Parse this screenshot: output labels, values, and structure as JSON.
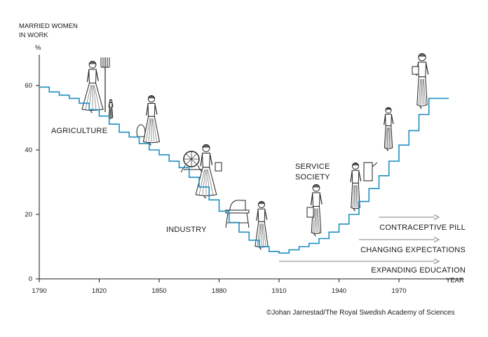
{
  "chart_data": {
    "type": "line",
    "ylabel": [
      "MARRIED WOMEN",
      "IN WORK"
    ],
    "yunit": "%",
    "xlabel": "YEAR",
    "xlim": [
      1790,
      1995
    ],
    "ylim": [
      0,
      65
    ],
    "xticks": [
      1790,
      1820,
      1850,
      1880,
      1910,
      1940,
      1970
    ],
    "yticks": [
      0,
      20,
      40,
      60
    ],
    "series_color": "#1f8fc1",
    "points": [
      {
        "x": 1790,
        "y": 59.5
      },
      {
        "x": 1795,
        "y": 58.0
      },
      {
        "x": 1800,
        "y": 57.0
      },
      {
        "x": 1805,
        "y": 56.0
      },
      {
        "x": 1810,
        "y": 54.5
      },
      {
        "x": 1815,
        "y": 52.5
      },
      {
        "x": 1820,
        "y": 50.5
      },
      {
        "x": 1825,
        "y": 48.0
      },
      {
        "x": 1830,
        "y": 45.5
      },
      {
        "x": 1835,
        "y": 44.0
      },
      {
        "x": 1840,
        "y": 42.0
      },
      {
        "x": 1845,
        "y": 40.0
      },
      {
        "x": 1850,
        "y": 38.5
      },
      {
        "x": 1855,
        "y": 36.5
      },
      {
        "x": 1860,
        "y": 34.5
      },
      {
        "x": 1865,
        "y": 31.5
      },
      {
        "x": 1870,
        "y": 28.5
      },
      {
        "x": 1875,
        "y": 24.5
      },
      {
        "x": 1880,
        "y": 21.0
      },
      {
        "x": 1885,
        "y": 17.5
      },
      {
        "x": 1890,
        "y": 14.5
      },
      {
        "x": 1895,
        "y": 12.0
      },
      {
        "x": 1900,
        "y": 10.0
      },
      {
        "x": 1905,
        "y": 8.5
      },
      {
        "x": 1910,
        "y": 8.0
      },
      {
        "x": 1915,
        "y": 9.0
      },
      {
        "x": 1920,
        "y": 10.0
      },
      {
        "x": 1925,
        "y": 11.0
      },
      {
        "x": 1930,
        "y": 12.5
      },
      {
        "x": 1935,
        "y": 14.5
      },
      {
        "x": 1940,
        "y": 17.0
      },
      {
        "x": 1945,
        "y": 20.0
      },
      {
        "x": 1950,
        "y": 24.0
      },
      {
        "x": 1955,
        "y": 28.0
      },
      {
        "x": 1960,
        "y": 32.0
      },
      {
        "x": 1965,
        "y": 36.5
      },
      {
        "x": 1970,
        "y": 41.5
      },
      {
        "x": 1975,
        "y": 46.0
      },
      {
        "x": 1980,
        "y": 51.0
      },
      {
        "x": 1985,
        "y": 56.0
      },
      {
        "x": 1990,
        "y": 56.0
      }
    ],
    "annotations": {
      "agriculture": "AGRICULTURE",
      "industry": "INDUSTRY",
      "service_line1": "SERVICE",
      "service_line2": "SOCIETY"
    },
    "trends": [
      {
        "label": "CONTRACEPTIVE PILL",
        "start": 1960
      },
      {
        "label": "CHANGING EXPECTATIONS",
        "start": 1950
      },
      {
        "label": "EXPANDING EDUCATION",
        "start": 1910
      }
    ],
    "figures": [
      "farm-woman-with-pitchfork",
      "child",
      "woman-sowing",
      "spinning-wheel",
      "woman-with-spinning-wheel",
      "sewing-machine",
      "factory-worker-woman",
      "woman-with-book",
      "woman-at-machine",
      "woman-in-dress",
      "woman-with-briefcase"
    ]
  },
  "credit": "©Johan Jarnestad/The Royal Swedish Academy of Sciences"
}
